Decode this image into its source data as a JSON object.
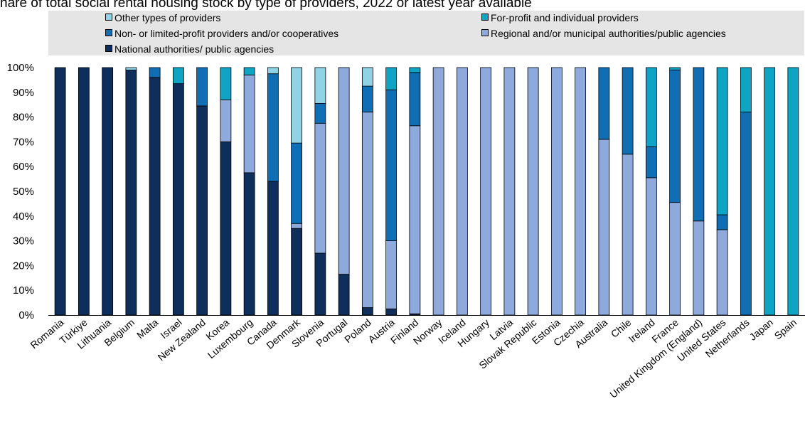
{
  "chart_data": {
    "type": "bar",
    "stacked": true,
    "title": "hare of total social rental housing stock by type of providers, 2022 or latest year available",
    "xlabel": "",
    "ylabel": "",
    "ylim": [
      0,
      100
    ],
    "yticks": [
      "0%",
      "10%",
      "20%",
      "30%",
      "40%",
      "50%",
      "60%",
      "70%",
      "80%",
      "90%",
      "100%"
    ],
    "grid": false,
    "legend_position": "top",
    "categories": [
      "Romania",
      "Türkiye",
      "Lithuania",
      "Belgium",
      "Malta",
      "Israel",
      "New Zealand",
      "Korea",
      "Luxembourg",
      "Canada",
      "Denmark",
      "Slovenia",
      "Portugal",
      "Poland",
      "Austria",
      "Finland",
      "Norway",
      "Iceland",
      "Hungary",
      "Latvia",
      "Slovak Republic",
      "Estonia",
      "Czechia",
      "Australia",
      "Chile",
      "Ireland",
      "France",
      "United Kingdom (England)",
      "United States",
      "Netherlands",
      "Japan",
      "Spain"
    ],
    "series": [
      {
        "name": "National authorities/ public agencies",
        "color": "#0e2e5b",
        "values": [
          100,
          100,
          100,
          99,
          96,
          93.5,
          84.5,
          70,
          57.5,
          54,
          35,
          25,
          16.5,
          3,
          2.5,
          0.5,
          0,
          0,
          0,
          0,
          0,
          0,
          0,
          0,
          0,
          0,
          0,
          0,
          0,
          0,
          0,
          0
        ]
      },
      {
        "name": "Regional and/or municipal authorities/public agencies",
        "color": "#8ea9db",
        "values": [
          0,
          0,
          0,
          0,
          0,
          0,
          0,
          17,
          39.5,
          0,
          2,
          52.5,
          83.5,
          79,
          27.5,
          76,
          100,
          100,
          100,
          100,
          100,
          100,
          100,
          71,
          65,
          55.5,
          45.5,
          38,
          34.5,
          0,
          0,
          0
        ]
      },
      {
        "name": "Non- or limited-profit providers and/or cooperatives",
        "color": "#0f6eb4",
        "values": [
          0,
          0,
          0,
          0,
          4,
          0,
          15.5,
          0,
          0,
          43.5,
          32.5,
          8,
          0,
          10.5,
          61,
          21.5,
          0,
          0,
          0,
          0,
          0,
          0,
          0,
          29,
          35,
          12.5,
          53.5,
          62,
          6,
          82,
          0,
          0
        ]
      },
      {
        "name": "For-profit and individual providers",
        "color": "#10a4c4",
        "values": [
          0,
          0,
          0,
          0,
          0,
          6.5,
          0,
          13,
          3,
          0,
          0,
          0,
          0,
          0,
          9,
          2,
          0,
          0,
          0,
          0,
          0,
          0,
          0,
          0,
          0,
          32,
          1,
          0,
          59.5,
          18,
          100,
          100
        ]
      },
      {
        "name": "Other types of providers",
        "color": "#8fd3e4",
        "values": [
          0,
          0,
          0,
          1,
          0,
          0,
          0,
          0,
          0,
          2.5,
          30.5,
          14.5,
          0,
          7.5,
          0,
          0,
          0,
          0,
          0,
          0,
          0,
          0,
          0,
          0,
          0,
          0,
          0,
          0,
          0,
          0,
          0,
          0
        ]
      }
    ]
  },
  "legend": [
    {
      "label": "Other types of providers",
      "color": "#8fd3e4"
    },
    {
      "label": "For-profit and individual providers",
      "color": "#10a4c4"
    },
    {
      "label": "Non- or limited-profit providers and/or cooperatives",
      "color": "#0f6eb4"
    },
    {
      "label": "Regional and/or municipal authorities/public agencies",
      "color": "#8ea9db"
    },
    {
      "label": "National authorities/ public agencies",
      "color": "#0e2e5b"
    }
  ]
}
